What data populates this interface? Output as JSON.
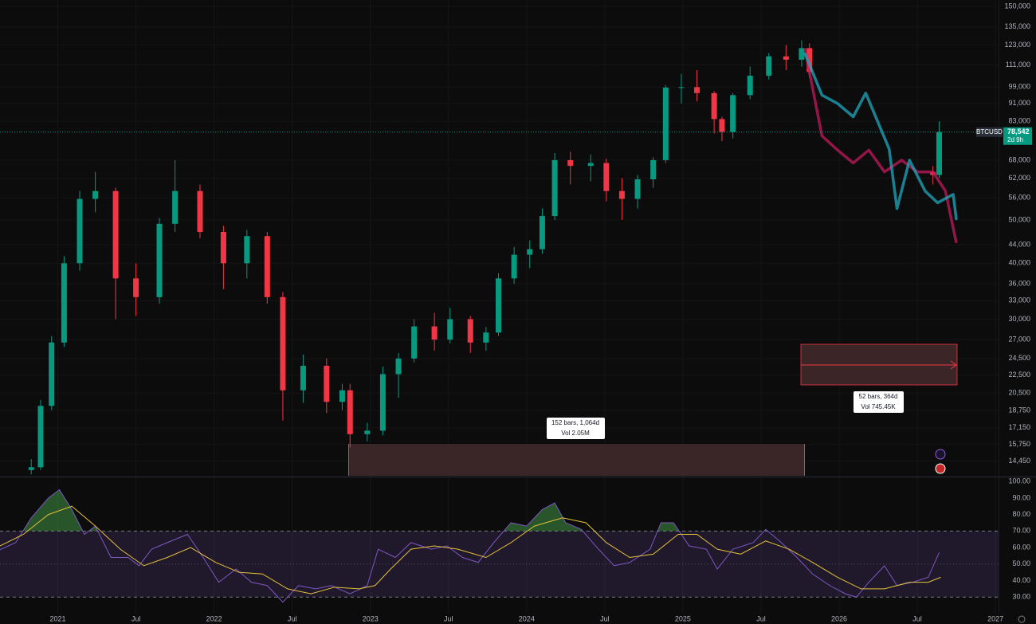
{
  "chart_data": [
    {
      "type": "candlestick",
      "symbol": "BTCUSD",
      "log_scale": true,
      "grid": true,
      "xlim": [
        2020.63,
        2027.02
      ],
      "ylim": [
        13400,
        155000
      ],
      "xticks": [
        {
          "value": 2021,
          "label": "2021"
        },
        {
          "value": 2021.5,
          "label": "Jul"
        },
        {
          "value": 2022,
          "label": "2022"
        },
        {
          "value": 2022.5,
          "label": "Jul"
        },
        {
          "value": 2023,
          "label": "2023"
        },
        {
          "value": 2023.5,
          "label": "Jul"
        },
        {
          "value": 2024,
          "label": "2024"
        },
        {
          "value": 2024.5,
          "label": "Jul"
        },
        {
          "value": 2025,
          "label": "2025"
        },
        {
          "value": 2025.5,
          "label": "Jul"
        },
        {
          "value": 2026,
          "label": "2026"
        },
        {
          "value": 2026.5,
          "label": "Jul"
        },
        {
          "value": 2027,
          "label": "2027"
        }
      ],
      "yticks": [
        {
          "value": 14450,
          "label": "14,450"
        },
        {
          "value": 15750,
          "label": "15,750"
        },
        {
          "value": 17150,
          "label": "17,150"
        },
        {
          "value": 18750,
          "label": "18,750"
        },
        {
          "value": 20500,
          "label": "20,500"
        },
        {
          "value": 22500,
          "label": "22,500"
        },
        {
          "value": 24500,
          "label": "24,500"
        },
        {
          "value": 27000,
          "label": "27,000"
        },
        {
          "value": 30000,
          "label": "30,000"
        },
        {
          "value": 33000,
          "label": "33,000"
        },
        {
          "value": 36000,
          "label": "36,000"
        },
        {
          "value": 40000,
          "label": "40,000"
        },
        {
          "value": 44000,
          "label": "44,000"
        },
        {
          "value": 50000,
          "label": "50,000"
        },
        {
          "value": 56000,
          "label": "56,000"
        },
        {
          "value": 62000,
          "label": "62,000"
        },
        {
          "value": 68000,
          "label": "68,000"
        },
        {
          "value": 83000,
          "label": "83,000"
        },
        {
          "value": 91000,
          "label": "91,000"
        },
        {
          "value": 99000,
          "label": "99,000"
        },
        {
          "value": 111000,
          "label": "111,000"
        },
        {
          "value": 123000,
          "label": "123,000"
        },
        {
          "value": 135000,
          "label": "135,000"
        },
        {
          "value": 150000,
          "label": "150,000"
        }
      ],
      "up_color": "#089981",
      "down_color": "#f23645",
      "x": [
        2020.83,
        2020.89,
        2020.96,
        2021.04,
        2021.14,
        2021.24,
        2021.37,
        2021.5,
        2021.65,
        2021.75,
        2021.91,
        2022.06,
        2022.21,
        2022.34,
        2022.44,
        2022.57,
        2022.72,
        2022.82,
        2022.87,
        2022.98,
        2023.08,
        2023.18,
        2023.28,
        2023.41,
        2023.51,
        2023.64,
        2023.74,
        2023.82,
        2023.92,
        2024.02,
        2024.1,
        2024.18,
        2024.28,
        2024.41,
        2024.51,
        2024.61,
        2024.71,
        2024.81,
        2024.89,
        2024.99,
        2025.09,
        2025.2,
        2025.25,
        2025.32,
        2025.43,
        2025.55,
        2025.66,
        2025.76,
        2025.81,
        2026.6,
        2026.64
      ],
      "open": [
        13800,
        14000,
        19200,
        26600,
        40000,
        55700,
        58000,
        37000,
        33600,
        49000,
        58000,
        47000,
        40000,
        46000,
        33600,
        20800,
        23600,
        19600,
        20800,
        16600,
        16900,
        22600,
        24500,
        28900,
        27000,
        30000,
        26600,
        28000,
        37000,
        41800,
        43000,
        51000,
        68000,
        66000,
        67000,
        58000,
        55700,
        61600,
        68000,
        98800,
        99000,
        96000,
        84000,
        78600,
        95000,
        105000,
        116000,
        114000,
        121000,
        64000,
        63000
      ],
      "high": [
        14600,
        19800,
        27500,
        41500,
        58000,
        64000,
        59000,
        40000,
        50500,
        68000,
        60000,
        48500,
        47500,
        47000,
        34500,
        25000,
        24500,
        21500,
        21500,
        17600,
        23500,
        25200,
        30000,
        31000,
        31800,
        30500,
        28800,
        38000,
        43500,
        45000,
        53000,
        70500,
        71000,
        70000,
        68500,
        62000,
        63000,
        69000,
        100000,
        106000,
        108000,
        97000,
        85000,
        96000,
        110000,
        118000,
        123000,
        126000,
        124000,
        66000,
        83000
      ],
      "low": [
        13500,
        13800,
        18800,
        26000,
        38500,
        52000,
        30000,
        30500,
        32500,
        47000,
        45500,
        35000,
        37000,
        32500,
        17800,
        19500,
        18500,
        18800,
        15500,
        16000,
        16500,
        20000,
        24000,
        25500,
        26500,
        25200,
        25500,
        27500,
        36000,
        39000,
        42000,
        50000,
        60000,
        61000,
        55000,
        50000,
        53000,
        59000,
        67000,
        91000,
        92000,
        78000,
        75000,
        76000,
        93000,
        103000,
        108000,
        110000,
        104000,
        60000,
        62000
      ],
      "close": [
        14000,
        19200,
        26600,
        40000,
        55700,
        58000,
        37000,
        33600,
        49000,
        58000,
        47000,
        40000,
        46000,
        33600,
        20800,
        23600,
        19600,
        20800,
        16600,
        16900,
        22600,
        24500,
        28900,
        27000,
        30000,
        26600,
        28000,
        37000,
        41800,
        43000,
        51000,
        68000,
        66000,
        67000,
        58000,
        55700,
        61600,
        68000,
        98800,
        99000,
        96000,
        84000,
        78600,
        95000,
        105000,
        116000,
        114000,
        121000,
        107000,
        63000,
        78542
      ],
      "projections": [
        {
          "color": "#c2185b",
          "x": [
            2025.78,
            2025.89,
            2025.99,
            2026.09,
            2026.19,
            2026.29,
            2026.4,
            2026.5,
            2026.6,
            2026.68,
            2026.75
          ],
          "values": [
            121000,
            77000,
            71600,
            67000,
            71600,
            64000,
            68000,
            64000,
            64000,
            58000,
            44400
          ]
        },
        {
          "color": "#1ea8bd",
          "x": [
            2025.78,
            2025.89,
            2025.99,
            2026.09,
            2026.17,
            2026.24,
            2026.32,
            2026.37,
            2026.45,
            2026.55,
            2026.63,
            2026.73,
            2026.75
          ],
          "values": [
            118000,
            95000,
            91000,
            85000,
            96000,
            84000,
            72000,
            53000,
            68000,
            58000,
            54600,
            57000,
            50000
          ]
        }
      ],
      "last_price": {
        "value": 78542,
        "label": "78,542",
        "countdown": "2d 9h",
        "color": "#089981"
      },
      "measurements": [
        {
          "text": "152 bars, 1,064d",
          "volume": "Vol 2.05M"
        },
        {
          "text": "52 bars, 364d",
          "volume": "Vol 745.45K"
        }
      ]
    },
    {
      "type": "line",
      "xlim": [
        2020.63,
        2027.02
      ],
      "ylim": [
        20,
        102
      ],
      "yticks": [
        {
          "value": 30,
          "label": "30.00"
        },
        {
          "value": 40,
          "label": "40.00"
        },
        {
          "value": 50,
          "label": "50.00"
        },
        {
          "value": 60,
          "label": "60.00"
        },
        {
          "value": 70,
          "label": "70.00"
        },
        {
          "value": 80,
          "label": "80.00"
        },
        {
          "value": 90,
          "label": "90.00"
        },
        {
          "value": 100,
          "label": "100.00"
        }
      ],
      "bands": {
        "upper": 70,
        "middle": 50,
        "lower": 30,
        "color": "#7e57c2"
      },
      "overbought_color": "#4caf50",
      "series": [
        {
          "color": "#7e57c2",
          "x": [
            2020.63,
            2020.73,
            2020.83,
            2020.94,
            2021.01,
            2021.09,
            2021.17,
            2021.24,
            2021.34,
            2021.45,
            2021.52,
            2021.6,
            2021.7,
            2021.83,
            2021.93,
            2022.03,
            2022.14,
            2022.24,
            2022.34,
            2022.44,
            2022.54,
            2022.65,
            2022.75,
            2022.87,
            2022.98,
            2023.05,
            2023.16,
            2023.26,
            2023.39,
            2023.49,
            2023.59,
            2023.69,
            2023.79,
            2023.9,
            2024.0,
            2024.1,
            2024.18,
            2024.25,
            2024.35,
            2024.46,
            2024.56,
            2024.66,
            2024.79,
            2024.86,
            2024.94,
            2025.04,
            2025.15,
            2025.22,
            2025.32,
            2025.45,
            2025.53,
            2025.63,
            2025.73,
            2025.83,
            2025.94,
            2026.04,
            2026.11,
            2026.19,
            2026.29,
            2026.37,
            2026.47,
            2026.57,
            2026.64
          ],
          "values": [
            58.7,
            63,
            78,
            90,
            95,
            83,
            68,
            73,
            54,
            54,
            49,
            59,
            63,
            68,
            54,
            39,
            47,
            39,
            37,
            27,
            37,
            35,
            37,
            32,
            37,
            59,
            54,
            63,
            59,
            61,
            54,
            51,
            63,
            75,
            73,
            83,
            87,
            75,
            71,
            59,
            49,
            51,
            59,
            75,
            75,
            61,
            59,
            47,
            59,
            63,
            71,
            63,
            54,
            44,
            37,
            32,
            30,
            39,
            49,
            37,
            39,
            42,
            57
          ]
        },
        {
          "color": "#e5c03a",
          "x": [
            2020.63,
            2020.78,
            2020.94,
            2021.09,
            2021.24,
            2021.4,
            2021.55,
            2021.7,
            2021.85,
            2022.01,
            2022.16,
            2022.31,
            2022.47,
            2022.62,
            2022.77,
            2022.93,
            2023.03,
            2023.13,
            2023.26,
            2023.41,
            2023.56,
            2023.74,
            2023.9,
            2024.05,
            2024.23,
            2024.38,
            2024.51,
            2024.66,
            2024.81,
            2024.97,
            2025.09,
            2025.22,
            2025.37,
            2025.53,
            2025.68,
            2025.83,
            2025.99,
            2026.14,
            2026.29,
            2026.45,
            2026.57,
            2026.65
          ],
          "values": [
            61,
            68,
            80,
            85,
            73,
            59,
            49,
            54,
            60,
            51,
            45,
            44,
            35,
            32,
            36,
            35,
            37,
            47,
            59,
            61,
            59,
            54,
            63,
            73,
            78,
            75,
            63,
            54,
            56,
            68,
            68,
            59,
            56,
            64,
            59,
            51,
            42,
            35,
            35,
            39,
            39,
            42
          ]
        }
      ]
    }
  ]
}
